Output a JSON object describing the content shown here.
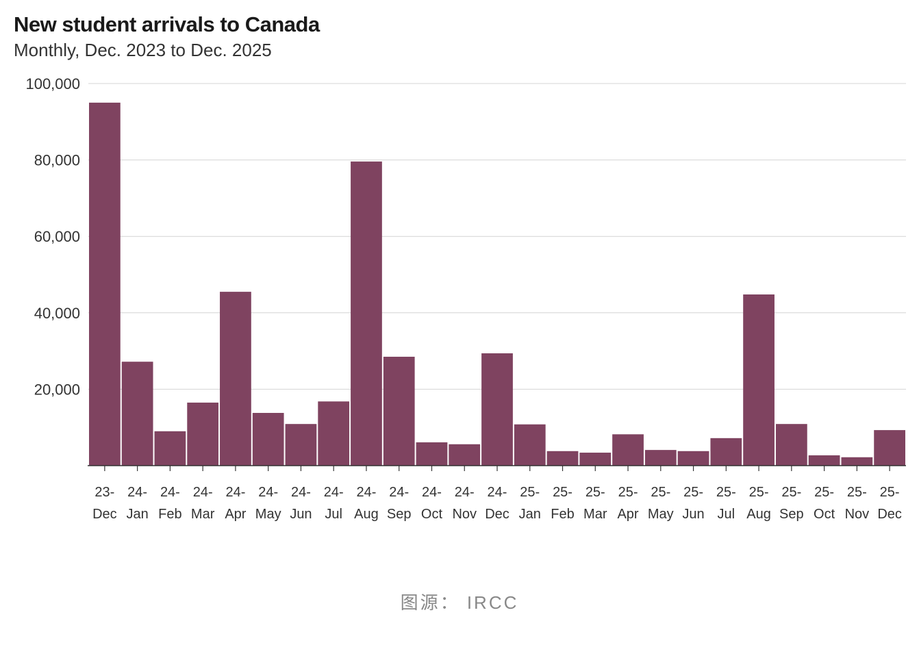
{
  "chart_data": {
    "type": "bar",
    "title": "New student arrivals to Canada",
    "subtitle": "Monthly, Dec. 2023 to Dec. 2025",
    "categories": [
      [
        "23-",
        "Dec"
      ],
      [
        "24-",
        "Jan"
      ],
      [
        "24-",
        "Feb"
      ],
      [
        "24-",
        "Mar"
      ],
      [
        "24-",
        "Apr"
      ],
      [
        "24-",
        "May"
      ],
      [
        "24-",
        "Jun"
      ],
      [
        "24-",
        "Jul"
      ],
      [
        "24-",
        "Aug"
      ],
      [
        "24-",
        "Sep"
      ],
      [
        "24-",
        "Oct"
      ],
      [
        "24-",
        "Nov"
      ],
      [
        "24-",
        "Dec"
      ],
      [
        "25-",
        "Jan"
      ],
      [
        "25-",
        "Feb"
      ],
      [
        "25-",
        "Mar"
      ],
      [
        "25-",
        "Apr"
      ],
      [
        "25-",
        "May"
      ],
      [
        "25-",
        "Jun"
      ],
      [
        "25-",
        "Jul"
      ],
      [
        "25-",
        "Aug"
      ],
      [
        "25-",
        "Sep"
      ],
      [
        "25-",
        "Oct"
      ],
      [
        "25-",
        "Nov"
      ],
      [
        "25-",
        "Dec"
      ]
    ],
    "values": [
      95000,
      27200,
      9000,
      16500,
      45500,
      13800,
      10900,
      16800,
      79600,
      28500,
      6100,
      5600,
      29400,
      10800,
      3800,
      3400,
      8200,
      4100,
      3800,
      7200,
      44800,
      10900,
      2700,
      2200,
      9300
    ],
    "ylim": [
      0,
      100000
    ],
    "yticks": [
      20000,
      40000,
      60000,
      80000,
      100000
    ],
    "ytick_labels": [
      "20,000",
      "40,000",
      "60,000",
      "80,000",
      "100,000"
    ],
    "grid": true,
    "xlabel": "",
    "ylabel": "",
    "bar_color": "#7f4360",
    "source": "图源： IRCC"
  }
}
